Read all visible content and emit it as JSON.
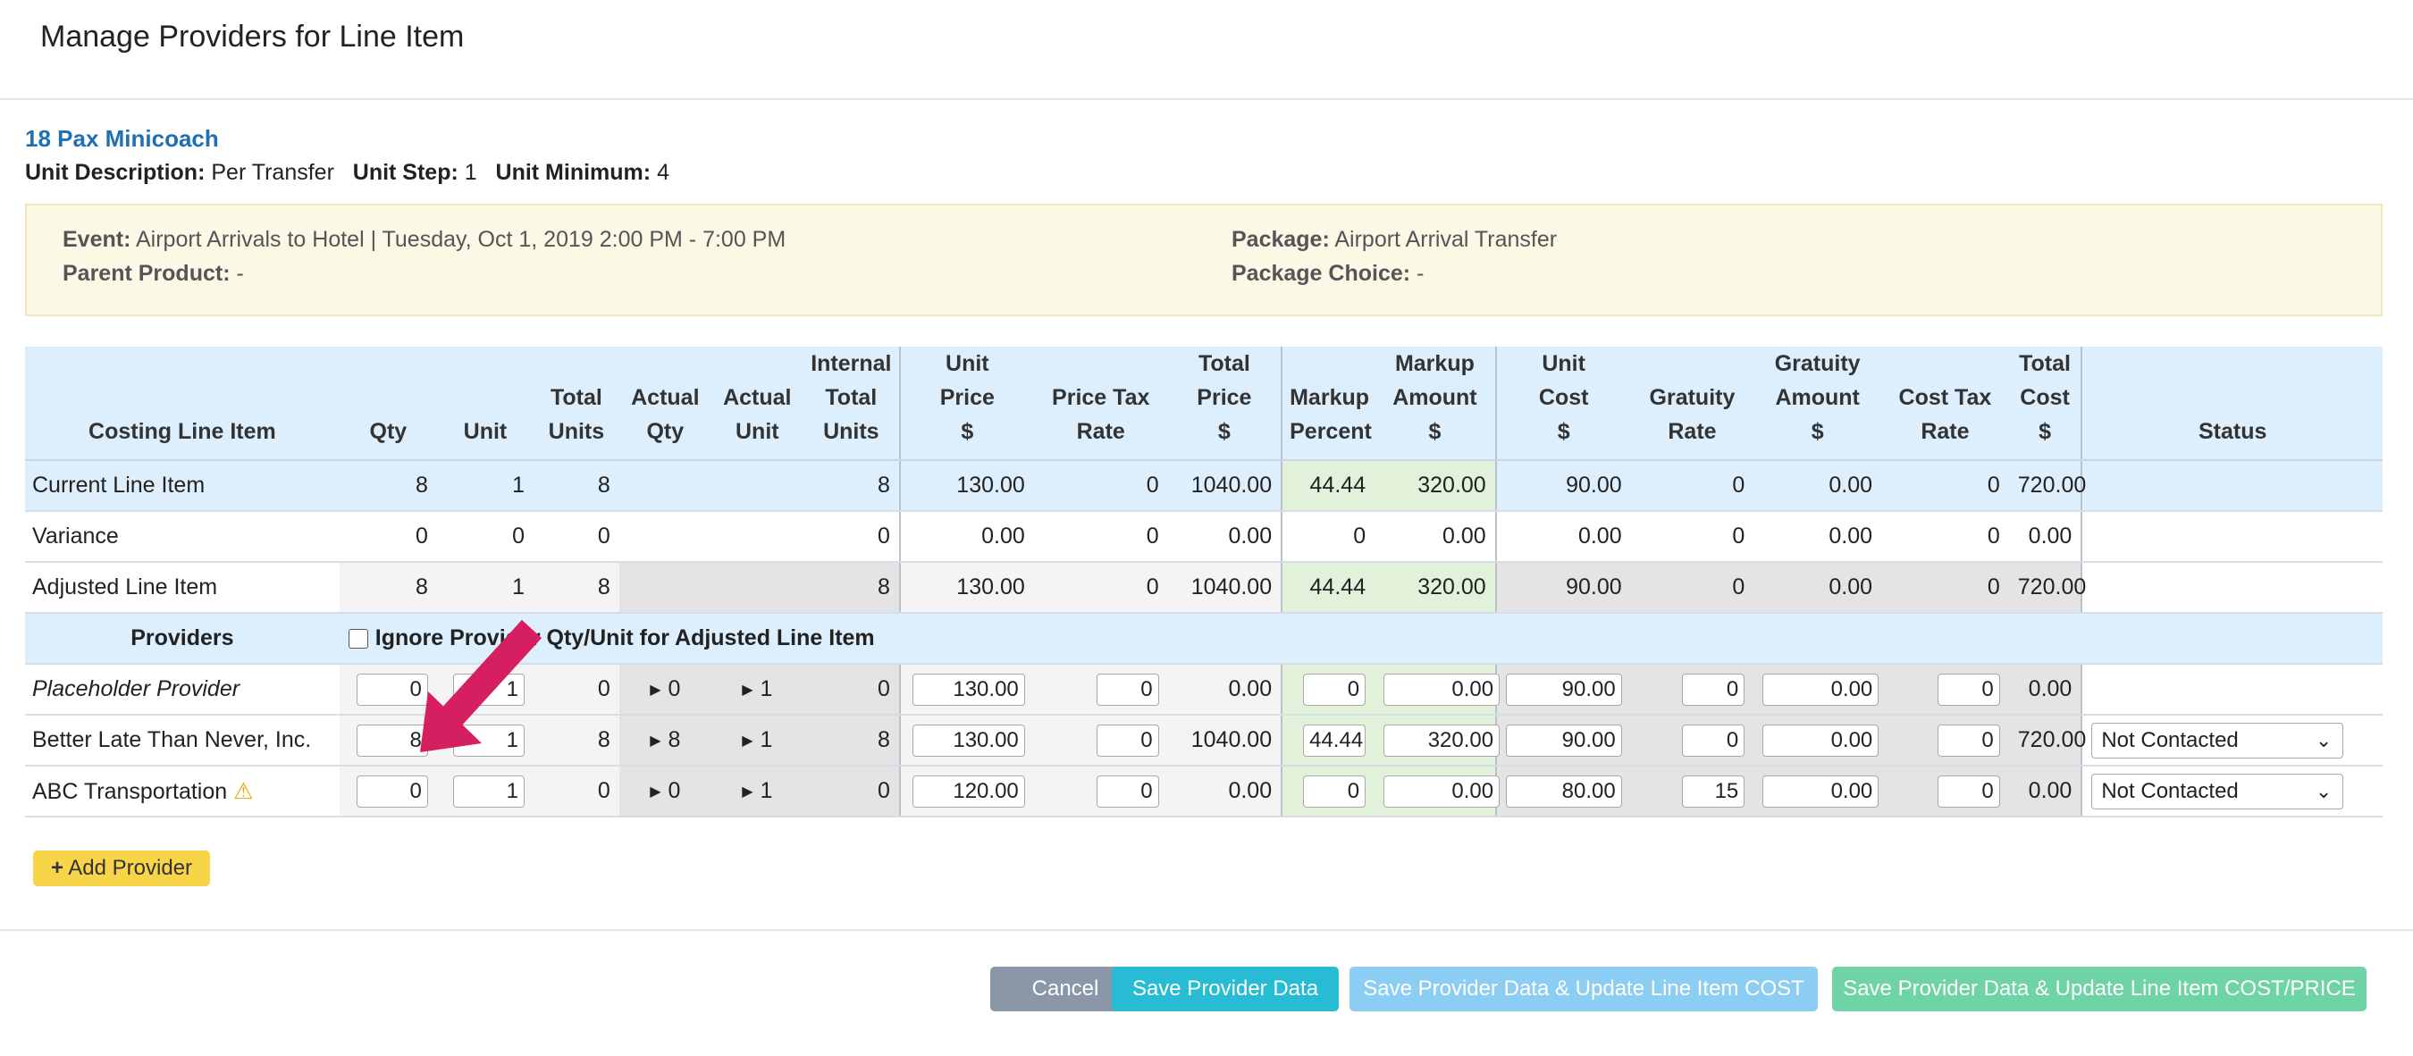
{
  "modal": {
    "title": "Manage Providers for Line Item"
  },
  "product": {
    "name": "18 Pax Minicoach",
    "unit_description_label": "Unit Description:",
    "unit_description": "Per Transfer",
    "unit_step_label": "Unit Step:",
    "unit_step": "1",
    "unit_minimum_label": "Unit Minimum:",
    "unit_minimum": "4"
  },
  "info": {
    "event_label": "Event:",
    "event": "Airport Arrivals to Hotel | Tuesday, Oct 1, 2019 2:00 PM - 7:00 PM",
    "parent_product_label": "Parent Product:",
    "parent_product": "-",
    "package_label": "Package:",
    "package": "Airport Arrival Transfer",
    "package_choice_label": "Package Choice:",
    "package_choice": "-"
  },
  "table": {
    "headers": {
      "costing_line_item": "Costing Line Item",
      "qty": "Qty",
      "unit": "Unit",
      "total_units_1": "Total",
      "total_units_2": "Units",
      "actual_qty_1": "Actual",
      "actual_qty_2": "Qty",
      "actual_unit_1": "Actual",
      "actual_unit_2": "Unit",
      "internal_1": "Internal",
      "internal_2": "Total",
      "internal_3": "Units",
      "unit_price_1": "Unit",
      "unit_price_2": "Price",
      "unit_price_3": "$",
      "price_tax_1": "Price Tax",
      "price_tax_2": "Rate",
      "total_price_1": "Total",
      "total_price_2": "Price",
      "total_price_3": "$",
      "markup_pct_1": "Markup",
      "markup_pct_2": "Percent",
      "markup_amt_1": "Markup",
      "markup_amt_2": "Amount",
      "markup_amt_3": "$",
      "unit_cost_1": "Unit",
      "unit_cost_2": "Cost",
      "unit_cost_3": "$",
      "gratuity_rate_1": "Gratuity",
      "gratuity_rate_2": "Rate",
      "gratuity_amt_1": "Gratuity",
      "gratuity_amt_2": "Amount",
      "gratuity_amt_3": "$",
      "cost_tax_1": "Cost Tax",
      "cost_tax_2": "Rate",
      "total_cost_1": "Total",
      "total_cost_2": "Cost",
      "total_cost_3": "$",
      "status": "Status"
    },
    "current": {
      "label": "Current Line Item",
      "qty": "8",
      "unit": "1",
      "total_units": "8",
      "internal": "8",
      "unit_price": "130.00",
      "price_tax": "0",
      "total_price": "1040.00",
      "markup_pct": "44.44",
      "markup_amt": "320.00",
      "unit_cost": "90.00",
      "gratuity_rate": "0",
      "gratuity_amt": "0.00",
      "cost_tax": "0",
      "total_cost": "720.00"
    },
    "variance": {
      "label": "Variance",
      "qty": "0",
      "unit": "0",
      "total_units": "0",
      "internal": "0",
      "unit_price": "0.00",
      "price_tax": "0",
      "total_price": "0.00",
      "markup_pct": "0",
      "markup_amt": "0.00",
      "unit_cost": "0.00",
      "gratuity_rate": "0",
      "gratuity_amt": "0.00",
      "cost_tax": "0",
      "total_cost": "0.00"
    },
    "adjusted": {
      "label": "Adjusted Line Item",
      "qty": "8",
      "unit": "1",
      "total_units": "8",
      "internal": "8",
      "unit_price": "130.00",
      "price_tax": "0",
      "total_price": "1040.00",
      "markup_pct": "44.44",
      "markup_amt": "320.00",
      "unit_cost": "90.00",
      "gratuity_rate": "0",
      "gratuity_amt": "0.00",
      "cost_tax": "0",
      "total_cost": "720.00"
    },
    "providers_label": "Providers",
    "ignore_label": "Ignore Provider Qty/Unit for Adjusted Line Item",
    "providers": [
      {
        "name": "Placeholder Provider",
        "qty": "0",
        "unit": "1",
        "total_units": "0",
        "actual_qty": "0",
        "actual_unit": "1",
        "internal": "0",
        "unit_price": "130.00",
        "price_tax": "0",
        "total_price": "0.00",
        "markup_pct": "0",
        "markup_amt": "0.00",
        "unit_cost": "90.00",
        "gratuity_rate": "0",
        "gratuity_amt": "0.00",
        "cost_tax": "0",
        "total_cost": "0.00",
        "status": ""
      },
      {
        "name": "Better Late Than Never, Inc.",
        "qty": "8",
        "unit": "1",
        "total_units": "8",
        "actual_qty": "8",
        "actual_unit": "1",
        "internal": "8",
        "unit_price": "130.00",
        "price_tax": "0",
        "total_price": "1040.00",
        "markup_pct": "44.44",
        "markup_amt": "320.00",
        "unit_cost": "90.00",
        "gratuity_rate": "0",
        "gratuity_amt": "0.00",
        "cost_tax": "0",
        "total_cost": "720.00",
        "status": "Not Contacted"
      },
      {
        "name": "ABC Transportation",
        "qty": "0",
        "unit": "1",
        "total_units": "0",
        "actual_qty": "0",
        "actual_unit": "1",
        "internal": "0",
        "unit_price": "120.00",
        "price_tax": "0",
        "total_price": "0.00",
        "markup_pct": "0",
        "markup_amt": "0.00",
        "unit_cost": "80.00",
        "gratuity_rate": "15",
        "gratuity_amt": "0.00",
        "cost_tax": "0",
        "total_cost": "0.00",
        "status": "Not Contacted"
      }
    ]
  },
  "buttons": {
    "add_provider": "Add Provider",
    "cancel": "Cancel",
    "save": "Save Provider Data",
    "save_cost": "Save Provider Data & Update Line Item COST",
    "save_cost_price": "Save Provider Data & Update Line Item COST/PRICE"
  },
  "colors": {
    "link": "#1f6fb2",
    "cancel": "#8a97a8",
    "save": "#27bcd3",
    "save_cost": "#8ccef3",
    "save_cost_price": "#6ed3a6",
    "add": "#f8d448",
    "arrow": "#d61f60"
  }
}
